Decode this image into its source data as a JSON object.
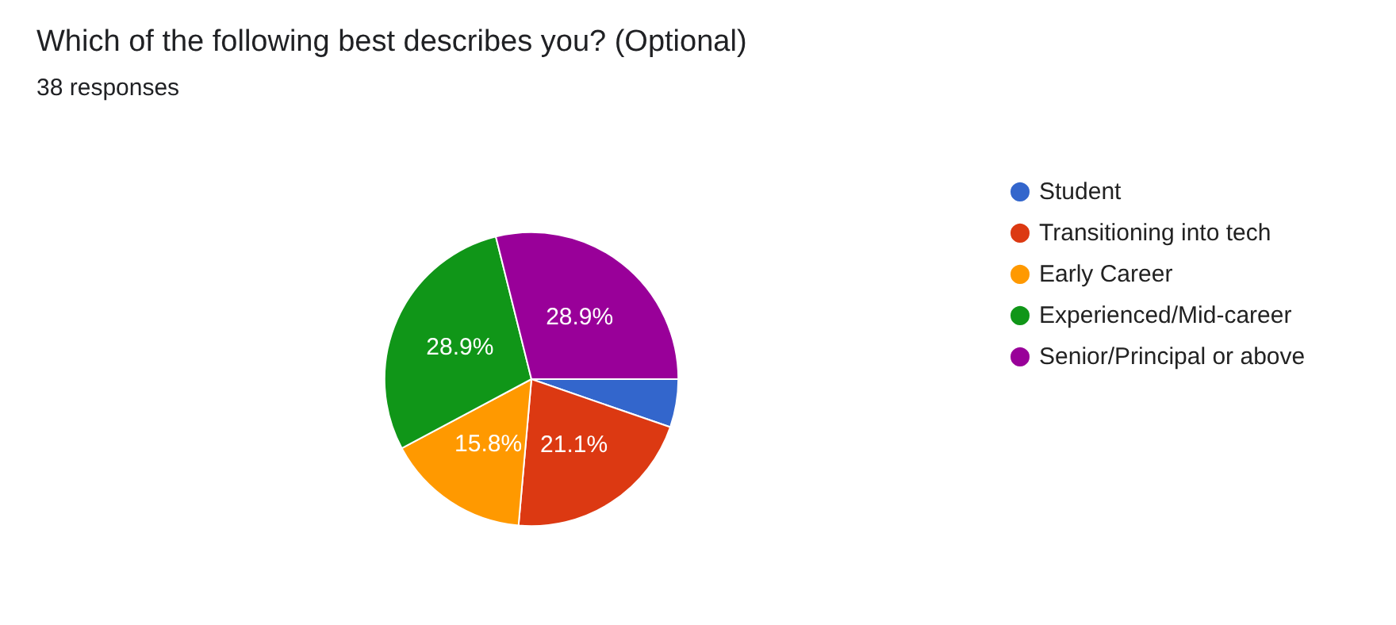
{
  "chart_data": {
    "type": "pie",
    "title": "Which of the following best describes you? (Optional)",
    "subtitle": "38 responses",
    "categories": [
      "Student",
      "Transitioning into tech",
      "Early Career",
      "Experienced/Mid-career",
      "Senior/Principal or above"
    ],
    "values": [
      5.3,
      21.1,
      15.8,
      28.9,
      28.9
    ],
    "colors": [
      "#3366cc",
      "#dc3912",
      "#ff9900",
      "#109618",
      "#990099"
    ],
    "value_labels": [
      null,
      "21.1%",
      "15.8%",
      "28.9%",
      "28.9%"
    ],
    "legend": "right"
  }
}
